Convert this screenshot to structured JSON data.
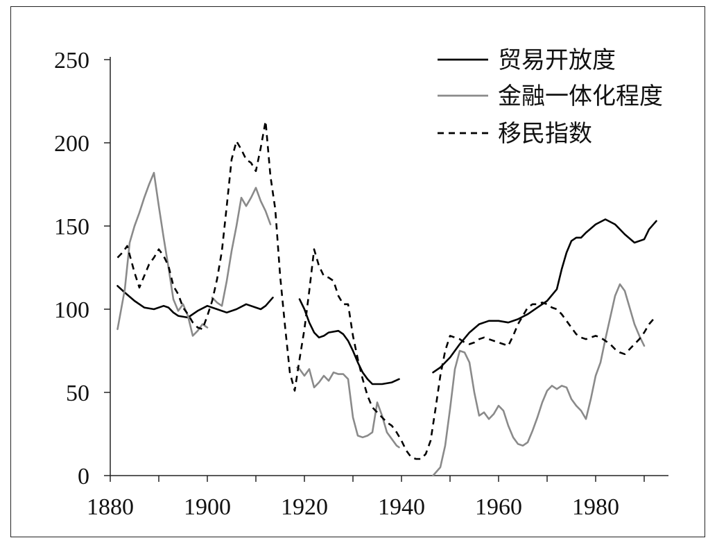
{
  "chart_data": {
    "type": "line",
    "title": "",
    "xlabel": "",
    "ylabel": "",
    "xlim": [
      1880,
      1995
    ],
    "ylim": [
      0,
      250
    ],
    "x_ticks": [
      1880,
      1900,
      1920,
      1940,
      1960,
      1980
    ],
    "y_ticks": [
      0,
      50,
      100,
      150,
      200,
      250
    ],
    "grid": false,
    "legend_position": "top-right",
    "series": [
      {
        "name": "贸易开放度",
        "color": "#000000",
        "dash": "solid",
        "segments": [
          [
            [
              1881.5,
              114
            ],
            [
              1883,
              110
            ],
            [
              1885,
              105
            ],
            [
              1887,
              101
            ],
            [
              1889,
              100
            ],
            [
              1891,
              102
            ],
            [
              1892,
              101
            ],
            [
              1893,
              98
            ],
            [
              1894,
              96
            ],
            [
              1896,
              95
            ],
            [
              1898,
              99
            ],
            [
              1900,
              102
            ],
            [
              1902,
              100
            ],
            [
              1904,
              98
            ],
            [
              1906,
              100
            ],
            [
              1908,
              103
            ],
            [
              1910,
              101
            ],
            [
              1911,
              100
            ],
            [
              1912,
              102
            ],
            [
              1913.5,
              107
            ]
          ],
          [
            [
              1919,
              106
            ],
            [
              1920,
              100
            ],
            [
              1921,
              92
            ],
            [
              1922,
              86
            ],
            [
              1923,
              83
            ],
            [
              1924,
              84
            ],
            [
              1925,
              86
            ],
            [
              1927,
              87
            ],
            [
              1928,
              85
            ],
            [
              1929,
              81
            ],
            [
              1930,
              75
            ],
            [
              1931,
              68
            ],
            [
              1932,
              62
            ],
            [
              1933,
              58
            ],
            [
              1934,
              55
            ],
            [
              1936,
              55
            ],
            [
              1938,
              56
            ],
            [
              1939.5,
              58
            ]
          ],
          [
            [
              1946.5,
              62
            ],
            [
              1948,
              65
            ],
            [
              1950,
              71
            ],
            [
              1952,
              79
            ],
            [
              1954,
              86
            ],
            [
              1956,
              91
            ],
            [
              1958,
              93
            ],
            [
              1960,
              93
            ],
            [
              1962,
              92
            ],
            [
              1964,
              94
            ],
            [
              1966,
              97
            ],
            [
              1968,
              101
            ],
            [
              1970,
              105
            ],
            [
              1972,
              112
            ],
            [
              1973,
              124
            ],
            [
              1974,
              134
            ],
            [
              1975,
              141
            ],
            [
              1976,
              143
            ],
            [
              1977,
              143
            ],
            [
              1978,
              146
            ],
            [
              1980,
              151
            ],
            [
              1982,
              154
            ],
            [
              1984,
              151
            ],
            [
              1986,
              145
            ],
            [
              1988,
              140
            ],
            [
              1990,
              142
            ],
            [
              1991,
              148
            ],
            [
              1992.5,
              153
            ]
          ]
        ]
      },
      {
        "name": "金融一体化程度",
        "color": "#8a8a8a",
        "dash": "solid",
        "segments": [
          [
            [
              1881.5,
              88
            ],
            [
              1883,
              112
            ],
            [
              1884,
              140
            ],
            [
              1885,
              150
            ],
            [
              1886,
              158
            ],
            [
              1887,
              167
            ],
            [
              1888,
              175
            ],
            [
              1889,
              182
            ],
            [
              1890,
              162
            ],
            [
              1891,
              143
            ],
            [
              1892,
              125
            ],
            [
              1893,
              106
            ],
            [
              1894,
              99
            ],
            [
              1895,
              103
            ],
            [
              1896,
              96
            ],
            [
              1897,
              84
            ],
            [
              1898,
              87
            ],
            [
              1899,
              91
            ],
            [
              1900,
              89
            ]
          ],
          [
            [
              1901,
              107
            ],
            [
              1902,
              104
            ],
            [
              1903,
              102
            ],
            [
              1904,
              117
            ],
            [
              1905,
              135
            ],
            [
              1906,
              150
            ],
            [
              1907,
              167
            ],
            [
              1908,
              162
            ],
            [
              1909,
              167
            ],
            [
              1910,
              173
            ],
            [
              1911,
              165
            ],
            [
              1912,
              159
            ],
            [
              1913,
              151
            ]
          ],
          [
            [
              1918.5,
              65
            ],
            [
              1919,
              64
            ],
            [
              1920,
              60
            ],
            [
              1921,
              64
            ],
            [
              1922,
              53
            ],
            [
              1923,
              56
            ],
            [
              1924,
              60
            ],
            [
              1925,
              57
            ],
            [
              1926,
              62
            ],
            [
              1927,
              61
            ],
            [
              1928,
              61
            ],
            [
              1929,
              58
            ],
            [
              1930,
              35
            ],
            [
              1931,
              24
            ],
            [
              1932,
              23
            ],
            [
              1933,
              24
            ],
            [
              1934,
              26
            ],
            [
              1935,
              44
            ],
            [
              1936,
              36
            ],
            [
              1937,
              26
            ],
            [
              1938,
              22
            ],
            [
              1939,
              18
            ],
            [
              1939.5,
              17
            ]
          ],
          [
            [
              1946.5,
              0
            ],
            [
              1948,
              5
            ],
            [
              1949,
              18
            ],
            [
              1950,
              40
            ],
            [
              1951,
              64
            ],
            [
              1952,
              75
            ],
            [
              1953,
              74
            ],
            [
              1954,
              68
            ],
            [
              1955,
              50
            ],
            [
              1956,
              36
            ],
            [
              1957,
              38
            ],
            [
              1958,
              34
            ],
            [
              1959,
              37
            ],
            [
              1960,
              42
            ],
            [
              1961,
              39
            ],
            [
              1962,
              30
            ],
            [
              1963,
              23
            ],
            [
              1964,
              19
            ],
            [
              1965,
              18
            ],
            [
              1966,
              20
            ],
            [
              1967,
              27
            ],
            [
              1968,
              35
            ],
            [
              1969,
              44
            ],
            [
              1970,
              51
            ],
            [
              1971,
              54
            ],
            [
              1972,
              52
            ],
            [
              1973,
              54
            ],
            [
              1974,
              53
            ],
            [
              1975,
              46
            ],
            [
              1976,
              42
            ],
            [
              1977,
              39
            ],
            [
              1978,
              34
            ],
            [
              1979,
              46
            ],
            [
              1980,
              60
            ],
            [
              1981,
              68
            ],
            [
              1982,
              82
            ],
            [
              1983,
              95
            ],
            [
              1984,
              108
            ],
            [
              1985,
              115
            ],
            [
              1986,
              111
            ],
            [
              1987,
              101
            ],
            [
              1988,
              91
            ],
            [
              1989,
              84
            ],
            [
              1990,
              78
            ]
          ]
        ]
      },
      {
        "name": "移民指数",
        "color": "#000000",
        "dash": "dashed",
        "segments": [
          [
            [
              1881.5,
              131
            ],
            [
              1882.5,
              134
            ],
            [
              1883.5,
              138
            ],
            [
              1885,
              122
            ],
            [
              1886,
              113
            ],
            [
              1887,
              120
            ],
            [
              1888,
              127
            ],
            [
              1889,
              131
            ],
            [
              1890,
              136
            ],
            [
              1891,
              132
            ],
            [
              1892,
              126
            ],
            [
              1893,
              114
            ],
            [
              1894,
              109
            ],
            [
              1895,
              101
            ],
            [
              1896,
              97
            ],
            [
              1897,
              92
            ],
            [
              1898,
              89
            ],
            [
              1899,
              88
            ],
            [
              1900,
              96
            ],
            [
              1901,
              105
            ],
            [
              1902,
              118
            ],
            [
              1903,
              135
            ],
            [
              1904,
              162
            ],
            [
              1905,
              190
            ],
            [
              1906,
              201
            ],
            [
              1907,
              196
            ],
            [
              1908,
              190
            ],
            [
              1909,
              188
            ],
            [
              1910,
              183
            ],
            [
              1911,
              197
            ],
            [
              1912,
              213
            ],
            [
              1913,
              180
            ],
            [
              1914,
              160
            ],
            [
              1915,
              120
            ],
            [
              1916,
              90
            ],
            [
              1917,
              62
            ],
            [
              1918,
              51
            ],
            [
              1919,
              70
            ],
            [
              1920,
              88
            ],
            [
              1921,
              111
            ],
            [
              1922,
              136
            ],
            [
              1923,
              126
            ],
            [
              1924,
              120
            ],
            [
              1925,
              119
            ],
            [
              1926,
              117
            ],
            [
              1927,
              108
            ],
            [
              1928,
              103
            ],
            [
              1929,
              103
            ],
            [
              1930,
              84
            ],
            [
              1931,
              70
            ],
            [
              1932,
              58
            ],
            [
              1933,
              48
            ],
            [
              1934,
              41
            ],
            [
              1935,
              38
            ],
            [
              1936,
              35
            ],
            [
              1937,
              32
            ],
            [
              1938,
              30
            ],
            [
              1939,
              26
            ],
            [
              1940,
              21
            ],
            [
              1941,
              15
            ],
            [
              1942,
              11
            ],
            [
              1943,
              10
            ],
            [
              1944,
              10
            ],
            [
              1945,
              13
            ],
            [
              1946,
              21
            ],
            [
              1947,
              40
            ],
            [
              1948,
              60
            ],
            [
              1949,
              75
            ],
            [
              1950,
              84
            ],
            [
              1951,
              83
            ],
            [
              1952,
              82
            ],
            [
              1953,
              80
            ],
            [
              1954,
              79
            ],
            [
              1955,
              80
            ],
            [
              1956,
              82
            ],
            [
              1957,
              83
            ],
            [
              1958,
              82
            ],
            [
              1959,
              81
            ],
            [
              1960,
              80
            ],
            [
              1961,
              79
            ],
            [
              1962,
              78
            ],
            [
              1963,
              84
            ],
            [
              1964,
              91
            ],
            [
              1965,
              96
            ],
            [
              1966,
              101
            ],
            [
              1967,
              103
            ],
            [
              1968,
              103
            ],
            [
              1969,
              104
            ],
            [
              1970,
              103
            ],
            [
              1971,
              101
            ],
            [
              1972,
              100
            ],
            [
              1973,
              97
            ],
            [
              1974,
              93
            ],
            [
              1975,
              89
            ],
            [
              1976,
              85
            ],
            [
              1977,
              83
            ],
            [
              1978,
              82
            ],
            [
              1979,
              83
            ],
            [
              1980,
              84
            ],
            [
              1981,
              83
            ],
            [
              1982,
              81
            ],
            [
              1983,
              79
            ],
            [
              1984,
              76
            ],
            [
              1985,
              74
            ],
            [
              1986,
              73
            ],
            [
              1987,
              76
            ],
            [
              1988,
              79
            ],
            [
              1989,
              82
            ],
            [
              1990,
              86
            ],
            [
              1991,
              91
            ],
            [
              1992.5,
              96
            ]
          ]
        ]
      }
    ]
  }
}
